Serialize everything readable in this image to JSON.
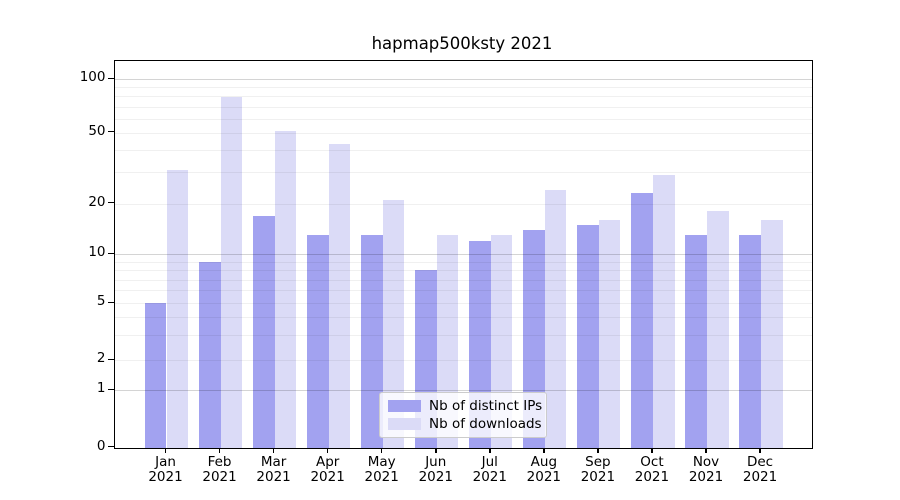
{
  "chart_data": {
    "type": "bar",
    "title": "hapmap500ksty 2021",
    "categories": [
      "Jan",
      "Feb",
      "Mar",
      "Apr",
      "May",
      "Jun",
      "Jul",
      "Aug",
      "Sep",
      "Oct",
      "Nov",
      "Dec"
    ],
    "year_line": "2021",
    "series": [
      {
        "name": "Nb of distinct IPs",
        "color": "#a2a2f0",
        "values": [
          5,
          9,
          17,
          13,
          13,
          8,
          12,
          14,
          15,
          23,
          13,
          13
        ]
      },
      {
        "name": "Nb of downloads",
        "color": "#dbdbf7",
        "values": [
          31,
          80,
          51,
          43,
          21,
          13,
          13,
          24,
          16,
          29,
          18,
          16
        ]
      }
    ],
    "yscale": "symlog",
    "yticks": [
      0,
      1,
      2,
      5,
      10,
      20,
      50,
      100
    ],
    "minor_gridline_values": [
      2,
      3,
      4,
      5,
      6,
      7,
      8,
      9,
      20,
      30,
      40,
      50,
      60,
      70,
      80,
      90
    ],
    "major_gridline_values": [
      1,
      10,
      100
    ],
    "ylim": [
      0,
      127
    ],
    "xlabel": "",
    "ylabel": "",
    "grid": "both",
    "legend_position": "lower center"
  },
  "colors": {
    "grid_major": "rgba(0,0,0,0.17)",
    "grid_minor": "rgba(0,0,0,0.06)",
    "spine": "#000000",
    "background": "#ffffff"
  }
}
